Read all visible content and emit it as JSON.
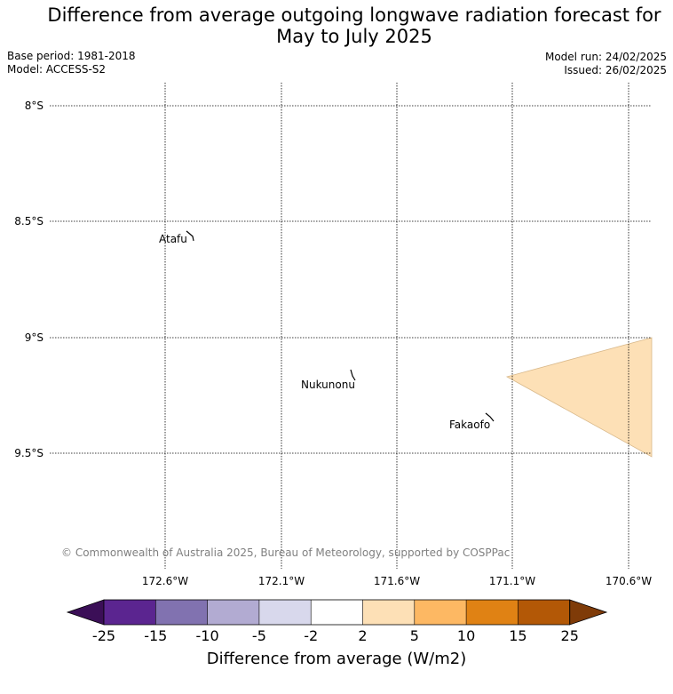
{
  "title_line1": "Difference from average outgoing longwave radiation forecast for",
  "title_line2": "May to July 2025",
  "base_period": "Base period: 1981-2018",
  "model": "Model: ACCESS-S2",
  "model_run": "Model run: 24/02/2025",
  "issued": "Issued: 26/02/2025",
  "map": {
    "lat_labels": [
      "8°S",
      "8.5°S",
      "9°S",
      "9.5°S"
    ],
    "lon_labels": [
      "172.6°W",
      "172.1°W",
      "171.6°W",
      "171.1°W",
      "170.6°W"
    ],
    "places": [
      "Atafu",
      "Nukunonu",
      "Fakaofo"
    ],
    "copyright": "© Commonwealth of Australia 2025, Bureau of Meteorology, supported by COSPPac",
    "anomaly_fill_color": "#fde0b6"
  },
  "colorbar": {
    "ticks": [
      "-25",
      "-15",
      "-10",
      "-5",
      "-2",
      "2",
      "5",
      "10",
      "15",
      "25"
    ],
    "colors": [
      "#3b0f57",
      "#5b2590",
      "#8172b0",
      "#b2abd2",
      "#d8d8ec",
      "#ffffff",
      "#fde0b6",
      "#fdb863",
      "#e08214",
      "#b35806",
      "#7f3b08"
    ],
    "label": "Difference from average (W/m2)"
  }
}
